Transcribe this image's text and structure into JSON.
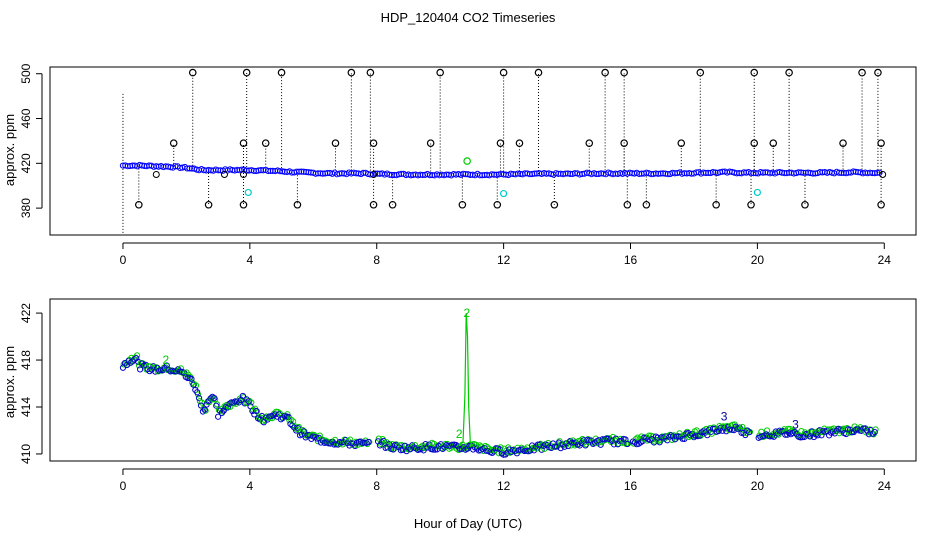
{
  "figure": {
    "title": "HDP_120404  CO2 Timeseries",
    "xlabel": "Hour of Day (UTC)"
  },
  "chart_data": [
    {
      "type": "scatter",
      "panel": "top",
      "ylabel": "approx. ppm",
      "xlim": [
        -2.3,
        25
      ],
      "ylim": [
        356,
        506
      ],
      "xticks": [
        0,
        4,
        8,
        12,
        16,
        20,
        24
      ],
      "yticks": [
        380,
        420,
        460,
        500
      ],
      "grid": false,
      "colors": {
        "main": "#0000ff",
        "outlier": "#000000",
        "green": "#00cc00",
        "cyan": "#00cccc"
      },
      "baseline": [
        [
          0,
          418
        ],
        [
          0.5,
          418
        ],
        [
          1,
          417.5
        ],
        [
          1.5,
          417
        ],
        [
          2,
          416
        ],
        [
          2.5,
          414
        ],
        [
          3,
          414
        ],
        [
          3.5,
          414
        ],
        [
          4,
          414
        ],
        [
          4.5,
          413.5
        ],
        [
          5,
          413
        ],
        [
          5.5,
          412
        ],
        [
          6,
          411.5
        ],
        [
          6.5,
          411
        ],
        [
          7,
          411
        ],
        [
          7.6,
          411
        ],
        [
          8,
          410.5
        ],
        [
          9,
          410
        ],
        [
          10,
          410
        ],
        [
          11,
          410
        ],
        [
          12,
          410
        ],
        [
          13,
          410.5
        ],
        [
          14,
          410.5
        ],
        [
          15,
          411
        ],
        [
          16,
          411
        ],
        [
          17,
          411
        ],
        [
          18,
          411.5
        ],
        [
          19,
          412
        ],
        [
          19.7,
          411.5
        ],
        [
          20,
          411.5
        ],
        [
          21,
          411.5
        ],
        [
          22,
          411.5
        ],
        [
          23,
          412
        ],
        [
          23.8,
          411.5
        ]
      ],
      "spikes_high": [
        2.2,
        3.9,
        5.0,
        7.2,
        7.8,
        10.0,
        12.0,
        13.1,
        15.2,
        15.8,
        18.2,
        19.9,
        21.0,
        23.3,
        23.8
      ],
      "spikes_mid": [
        1.6,
        3.8,
        4.5,
        6.7,
        7.9,
        9.7,
        11.9,
        12.5,
        14.7,
        15.8,
        17.6,
        19.9,
        20.5,
        22.7,
        23.9
      ],
      "spikes_low": [
        0.5,
        2.7,
        3.8,
        5.5,
        7.9,
        8.5,
        10.7,
        11.8,
        13.6,
        15.9,
        16.5,
        18.7,
        19.8,
        21.5,
        23.9
      ],
      "cyan_points": [
        [
          3.95,
          394
        ],
        [
          12.0,
          393
        ],
        [
          20.0,
          394
        ]
      ],
      "green_points": [
        [
          10.85,
          422
        ]
      ],
      "high_value": 501,
      "mid_value": 438,
      "low_value": 383,
      "series_green": [
        [
          10.8,
          422
        ]
      ],
      "black_small": [
        [
          1.05,
          410
        ],
        [
          3.2,
          410
        ],
        [
          3.8,
          410
        ],
        [
          7.9,
          410
        ]
      ]
    },
    {
      "type": "scatter",
      "panel": "bottom",
      "ylabel": "approx. ppm",
      "xlim": [
        -2.3,
        25
      ],
      "ylim": [
        409.4,
        423.2
      ],
      "xticks": [
        0,
        4,
        8,
        12,
        16,
        20,
        24
      ],
      "yticks": [
        410,
        414,
        418,
        422
      ],
      "grid": false,
      "colors": {
        "blue": "#0000cc",
        "green": "#00cc00",
        "label": "#000099"
      },
      "profile": [
        [
          0.0,
          417.5
        ],
        [
          0.2,
          418.0
        ],
        [
          0.4,
          418.2
        ],
        [
          0.5,
          417.5
        ],
        [
          1.0,
          417.2
        ],
        [
          1.4,
          417.3
        ],
        [
          1.8,
          417.0
        ],
        [
          2.1,
          416.5
        ],
        [
          2.3,
          415.5
        ],
        [
          2.45,
          414.2
        ],
        [
          2.55,
          413.7
        ],
        [
          2.7,
          414.6
        ],
        [
          2.85,
          414.9
        ],
        [
          3.0,
          413.4
        ],
        [
          3.2,
          413.8
        ],
        [
          3.4,
          414.2
        ],
        [
          3.6,
          414.5
        ],
        [
          3.75,
          414.8
        ],
        [
          3.85,
          414.4
        ],
        [
          3.95,
          414.4
        ],
        [
          4.15,
          413.6
        ],
        [
          4.4,
          412.9
        ],
        [
          4.6,
          413.2
        ],
        [
          4.9,
          413.3
        ],
        [
          5.2,
          413.0
        ],
        [
          5.5,
          412.0
        ],
        [
          5.8,
          411.5
        ],
        [
          6.2,
          411.2
        ],
        [
          6.7,
          411.0
        ],
        [
          7.2,
          410.9
        ],
        [
          7.8,
          410.8
        ],
        [
          8.1,
          411.0
        ],
        [
          8.4,
          410.6
        ],
        [
          9.0,
          410.5
        ],
        [
          9.6,
          410.6
        ],
        [
          10.2,
          410.6
        ],
        [
          10.6,
          410.5
        ],
        [
          11.0,
          410.6
        ],
        [
          11.5,
          410.3
        ],
        [
          12.0,
          410.2
        ],
        [
          12.4,
          410.3
        ],
        [
          13.0,
          410.5
        ],
        [
          13.6,
          410.7
        ],
        [
          14.2,
          410.9
        ],
        [
          14.8,
          411.0
        ],
        [
          15.4,
          411.1
        ],
        [
          15.9,
          411.0
        ],
        [
          16.5,
          411.2
        ],
        [
          17.2,
          411.3
        ],
        [
          17.8,
          411.6
        ],
        [
          18.4,
          411.8
        ],
        [
          18.8,
          412.1
        ],
        [
          19.3,
          412.2
        ],
        [
          19.7,
          411.8
        ],
        [
          19.9,
          411.5
        ],
        [
          20.0,
          411.6
        ],
        [
          20.5,
          411.7
        ],
        [
          21.0,
          411.8
        ],
        [
          21.5,
          411.6
        ],
        [
          22.0,
          411.8
        ],
        [
          22.5,
          411.9
        ],
        [
          23.0,
          412.0
        ],
        [
          23.5,
          411.9
        ],
        [
          23.7,
          411.8
        ]
      ],
      "gaps": [
        [
          7.75,
          8.0
        ],
        [
          11.95,
          12.0
        ],
        [
          15.95,
          16.05
        ],
        [
          19.75,
          20.0
        ]
      ],
      "green_spike": [
        [
          10.6,
          410.7
        ],
        [
          10.72,
          411.0
        ],
        [
          10.78,
          415.0
        ],
        [
          10.82,
          422.0
        ],
        [
          10.86,
          420.0
        ],
        [
          10.9,
          414.0
        ],
        [
          10.95,
          411.0
        ],
        [
          11.05,
          410.6
        ]
      ],
      "labels": [
        {
          "text": "2",
          "x": 10.84,
          "y": 422.0,
          "color": "green"
        },
        {
          "text": "2",
          "x": 10.6,
          "y": 411.7,
          "color": "green"
        },
        {
          "text": "2",
          "x": 1.35,
          "y": 418.0,
          "color": "green"
        },
        {
          "text": "3",
          "x": 18.95,
          "y": 413.2,
          "color": "label"
        },
        {
          "text": "3",
          "x": 21.2,
          "y": 412.5,
          "color": "label"
        }
      ]
    }
  ]
}
